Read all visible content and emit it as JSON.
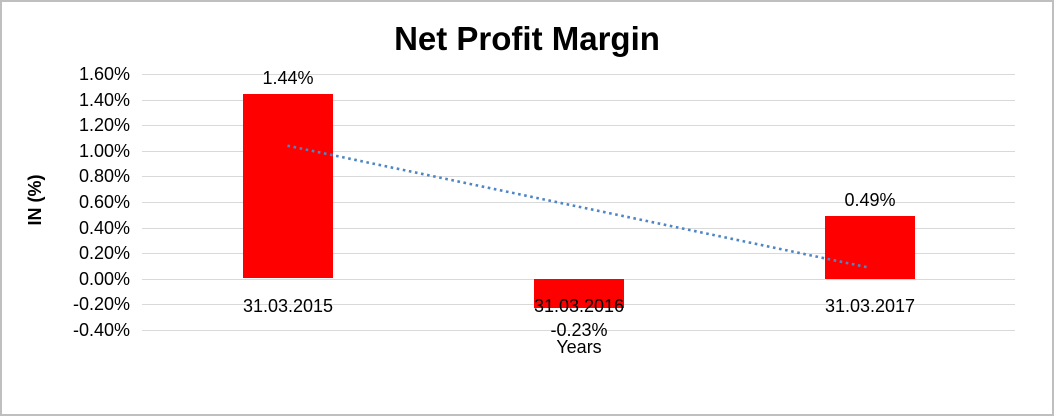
{
  "chart_data": {
    "type": "bar",
    "title": "Net Profit Margin",
    "categories": [
      "31.03.2015",
      "31.03.2016",
      "31.03.2017"
    ],
    "values": [
      1.44,
      -0.23,
      0.49
    ],
    "data_labels": [
      "1.44%",
      "-0.23%",
      "0.49%"
    ],
    "xlabel": "Years",
    "ylabel": "IN (%)",
    "ylim": [
      -0.4,
      1.6
    ],
    "ytick_values": [
      1.6,
      1.4,
      1.2,
      1.0,
      0.8,
      0.6,
      0.4,
      0.2,
      0.0,
      -0.2,
      -0.4
    ],
    "ytick_labels": [
      "1.60%",
      "1.40%",
      "1.20%",
      "1.00%",
      "0.80%",
      "0.60%",
      "0.40%",
      "0.20%",
      "0.00%",
      "-0.20%",
      "-0.40%"
    ],
    "grid": true,
    "legend": false,
    "trendline": {
      "shape": "linear",
      "style": "dotted",
      "start_value": 1.04,
      "end_value": 0.09
    },
    "colors": {
      "bar": "#ff0000",
      "trendline": "#4e86c4",
      "gridline": "#d9d9d9",
      "text": "#000000",
      "border": "#bfbfbf",
      "background": "#ffffff"
    }
  }
}
